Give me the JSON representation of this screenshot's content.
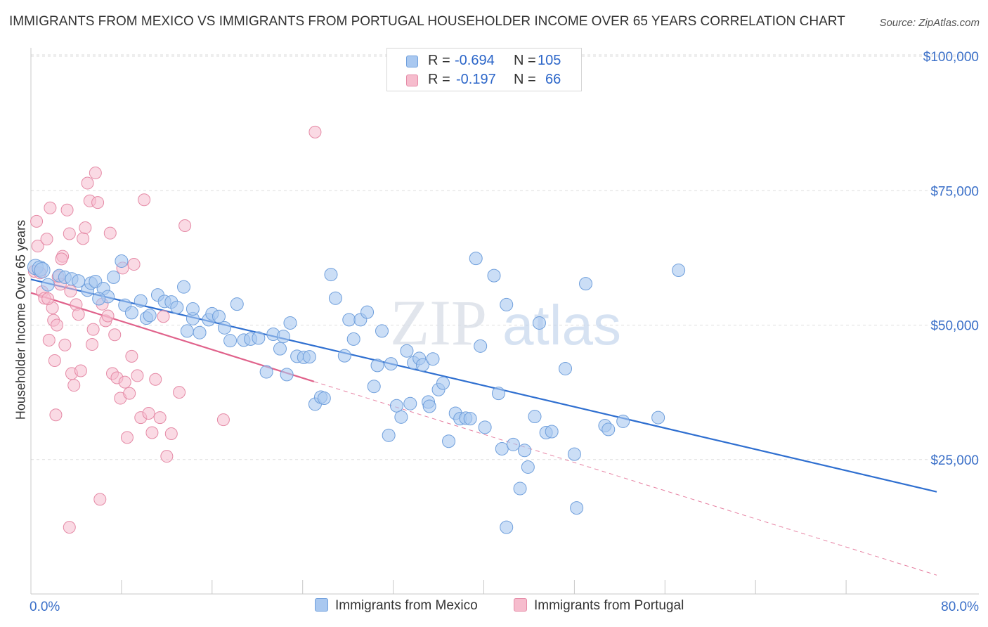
{
  "title": "IMMIGRANTS FROM MEXICO VS IMMIGRANTS FROM PORTUGAL HOUSEHOLDER INCOME OVER 65 YEARS CORRELATION CHART",
  "source": "Source: ZipAtlas.com",
  "watermark": {
    "zip": "ZIP",
    "atlas": "atlas"
  },
  "legend": {
    "rows": [
      {
        "r_label": "R =",
        "r_value": "-0.694",
        "n_label": "N =",
        "n_value": "105"
      },
      {
        "r_label": "R =",
        "r_value": "-0.197",
        "n_label": "N =",
        "n_value": "66"
      }
    ]
  },
  "colors": {
    "mexico_fill": "#a9c8f0",
    "mexico_stroke": "#6f9fdc",
    "mexico_line": "#2f6fd0",
    "portugal_fill": "#f6bccd",
    "portugal_stroke": "#e58aa6",
    "portugal_line": "#e0628b",
    "tick_label": "#3a6fc8",
    "grid": "#dedede"
  },
  "chart_data": {
    "type": "scatter",
    "title": "IMMIGRANTS FROM MEXICO VS IMMIGRANTS FROM PORTUGAL HOUSEHOLDER INCOME OVER 65 YEARS CORRELATION CHART",
    "xlabel": "",
    "ylabel": "Householder Income Over 65 years",
    "xlim": [
      0,
      80
    ],
    "ylim": [
      0,
      105000
    ],
    "x_tick_labels": [
      "0.0%",
      "80.0%"
    ],
    "y_ticks": [
      25000,
      50000,
      75000,
      100000
    ],
    "y_tick_labels": [
      "$25,000",
      "$50,000",
      "$75,000",
      "$100,000"
    ],
    "grid": true,
    "legend_position": "bottom",
    "series": [
      {
        "name": "Immigrants from Mexico",
        "r": -0.694,
        "n": 105,
        "trend": {
          "x": [
            0,
            80
          ],
          "y": [
            58500,
            19000
          ],
          "style": "solid"
        },
        "points": [
          [
            0.4,
            60800
          ],
          [
            0.8,
            60500
          ],
          [
            1.0,
            60200
          ],
          [
            1.5,
            57500
          ],
          [
            2.5,
            59200
          ],
          [
            3.0,
            58900
          ],
          [
            3.6,
            58600
          ],
          [
            4.2,
            58200
          ],
          [
            5.0,
            56500
          ],
          [
            5.3,
            57800
          ],
          [
            5.7,
            58100
          ],
          [
            6.4,
            56800
          ],
          [
            6.8,
            55300
          ],
          [
            7.3,
            58900
          ],
          [
            8.0,
            61900
          ],
          [
            8.3,
            53700
          ],
          [
            8.9,
            52300
          ],
          [
            9.7,
            54500
          ],
          [
            10.2,
            51300
          ],
          [
            10.5,
            51800
          ],
          [
            11.2,
            55600
          ],
          [
            11.8,
            54400
          ],
          [
            12.4,
            54300
          ],
          [
            12.9,
            53300
          ],
          [
            13.5,
            57100
          ],
          [
            13.8,
            48900
          ],
          [
            14.3,
            51200
          ],
          [
            14.9,
            48600
          ],
          [
            15.7,
            51000
          ],
          [
            16.0,
            52100
          ],
          [
            16.6,
            51600
          ],
          [
            17.1,
            49500
          ],
          [
            17.6,
            47100
          ],
          [
            18.2,
            53900
          ],
          [
            18.8,
            47200
          ],
          [
            19.4,
            47400
          ],
          [
            20.1,
            47600
          ],
          [
            20.8,
            41300
          ],
          [
            21.4,
            48300
          ],
          [
            22.0,
            45600
          ],
          [
            22.3,
            47900
          ],
          [
            22.9,
            50400
          ],
          [
            23.5,
            44200
          ],
          [
            24.1,
            44000
          ],
          [
            24.6,
            44100
          ],
          [
            25.1,
            35300
          ],
          [
            25.6,
            36600
          ],
          [
            25.9,
            36400
          ],
          [
            26.5,
            59400
          ],
          [
            26.9,
            55000
          ],
          [
            27.7,
            44300
          ],
          [
            28.1,
            51000
          ],
          [
            28.5,
            47400
          ],
          [
            29.1,
            51000
          ],
          [
            29.7,
            52400
          ],
          [
            30.3,
            38600
          ],
          [
            30.6,
            42500
          ],
          [
            31.0,
            48900
          ],
          [
            31.8,
            42800
          ],
          [
            32.3,
            35000
          ],
          [
            32.7,
            32900
          ],
          [
            33.2,
            45200
          ],
          [
            33.5,
            35400
          ],
          [
            33.8,
            43000
          ],
          [
            34.3,
            43800
          ],
          [
            34.6,
            42600
          ],
          [
            35.1,
            35700
          ],
          [
            35.5,
            43700
          ],
          [
            36.0,
            38000
          ],
          [
            36.4,
            39200
          ],
          [
            36.9,
            28400
          ],
          [
            37.5,
            33600
          ],
          [
            37.9,
            32600
          ],
          [
            38.4,
            32700
          ],
          [
            38.8,
            32600
          ],
          [
            39.3,
            62400
          ],
          [
            39.7,
            46100
          ],
          [
            40.1,
            31000
          ],
          [
            40.9,
            59200
          ],
          [
            41.3,
            37300
          ],
          [
            41.6,
            27000
          ],
          [
            42.0,
            53800
          ],
          [
            42.6,
            27800
          ],
          [
            43.2,
            19600
          ],
          [
            43.6,
            26700
          ],
          [
            43.9,
            23600
          ],
          [
            44.5,
            33000
          ],
          [
            44.9,
            50400
          ],
          [
            45.5,
            30000
          ],
          [
            46.0,
            30200
          ],
          [
            47.2,
            41900
          ],
          [
            48.0,
            26000
          ],
          [
            48.2,
            16000
          ],
          [
            49.0,
            57700
          ],
          [
            50.7,
            31300
          ],
          [
            51.0,
            30600
          ],
          [
            52.3,
            32100
          ],
          [
            55.4,
            32800
          ],
          [
            57.2,
            60200
          ],
          [
            42.0,
            12400
          ],
          [
            35.2,
            34900
          ],
          [
            31.6,
            29500
          ],
          [
            22.6,
            40800
          ],
          [
            14.3,
            53000
          ],
          [
            6.0,
            54900
          ]
        ]
      },
      {
        "name": "Immigrants from Portugal",
        "r": -0.197,
        "n": 66,
        "trend": {
          "x": [
            0,
            25
          ],
          "y": [
            56000,
            39500
          ],
          "style": "solid",
          "dashed_extension": {
            "x": [
              25,
              80
            ],
            "y": [
              39500,
              3500
            ]
          }
        },
        "points": [
          [
            0.3,
            60000
          ],
          [
            0.5,
            69300
          ],
          [
            0.6,
            64700
          ],
          [
            0.8,
            59700
          ],
          [
            1.0,
            56200
          ],
          [
            1.2,
            55000
          ],
          [
            1.4,
            66000
          ],
          [
            1.6,
            47200
          ],
          [
            1.7,
            71800
          ],
          [
            1.9,
            53200
          ],
          [
            2.0,
            50900
          ],
          [
            2.1,
            43400
          ],
          [
            2.2,
            33300
          ],
          [
            2.3,
            50000
          ],
          [
            2.4,
            59000
          ],
          [
            2.6,
            57600
          ],
          [
            2.8,
            62800
          ],
          [
            3.0,
            46300
          ],
          [
            3.2,
            71400
          ],
          [
            3.4,
            67000
          ],
          [
            3.5,
            56300
          ],
          [
            3.6,
            41000
          ],
          [
            3.8,
            38800
          ],
          [
            4.0,
            53800
          ],
          [
            4.2,
            52000
          ],
          [
            4.4,
            41500
          ],
          [
            4.6,
            66100
          ],
          [
            4.8,
            68100
          ],
          [
            5.0,
            76400
          ],
          [
            5.2,
            73100
          ],
          [
            5.4,
            46400
          ],
          [
            5.5,
            49200
          ],
          [
            5.7,
            78300
          ],
          [
            5.9,
            72800
          ],
          [
            6.1,
            17600
          ],
          [
            6.3,
            53900
          ],
          [
            6.6,
            50800
          ],
          [
            6.8,
            51700
          ],
          [
            7.0,
            67100
          ],
          [
            7.2,
            41000
          ],
          [
            7.4,
            48200
          ],
          [
            7.6,
            40200
          ],
          [
            7.9,
            36400
          ],
          [
            8.1,
            60600
          ],
          [
            8.3,
            39400
          ],
          [
            8.5,
            29100
          ],
          [
            8.7,
            37300
          ],
          [
            8.9,
            44200
          ],
          [
            9.1,
            61300
          ],
          [
            9.4,
            40600
          ],
          [
            9.7,
            32800
          ],
          [
            10.0,
            73300
          ],
          [
            10.4,
            33600
          ],
          [
            10.7,
            30000
          ],
          [
            11.0,
            39900
          ],
          [
            11.4,
            32800
          ],
          [
            11.7,
            51600
          ],
          [
            12.0,
            25600
          ],
          [
            12.4,
            29800
          ],
          [
            13.1,
            37500
          ],
          [
            13.6,
            68500
          ],
          [
            17.0,
            32400
          ],
          [
            25.1,
            85900
          ],
          [
            3.4,
            12400
          ],
          [
            1.5,
            54900
          ],
          [
            2.7,
            62300
          ]
        ]
      }
    ]
  },
  "bottom_legend": [
    "Immigrants from Mexico",
    "Immigrants from Portugal"
  ]
}
